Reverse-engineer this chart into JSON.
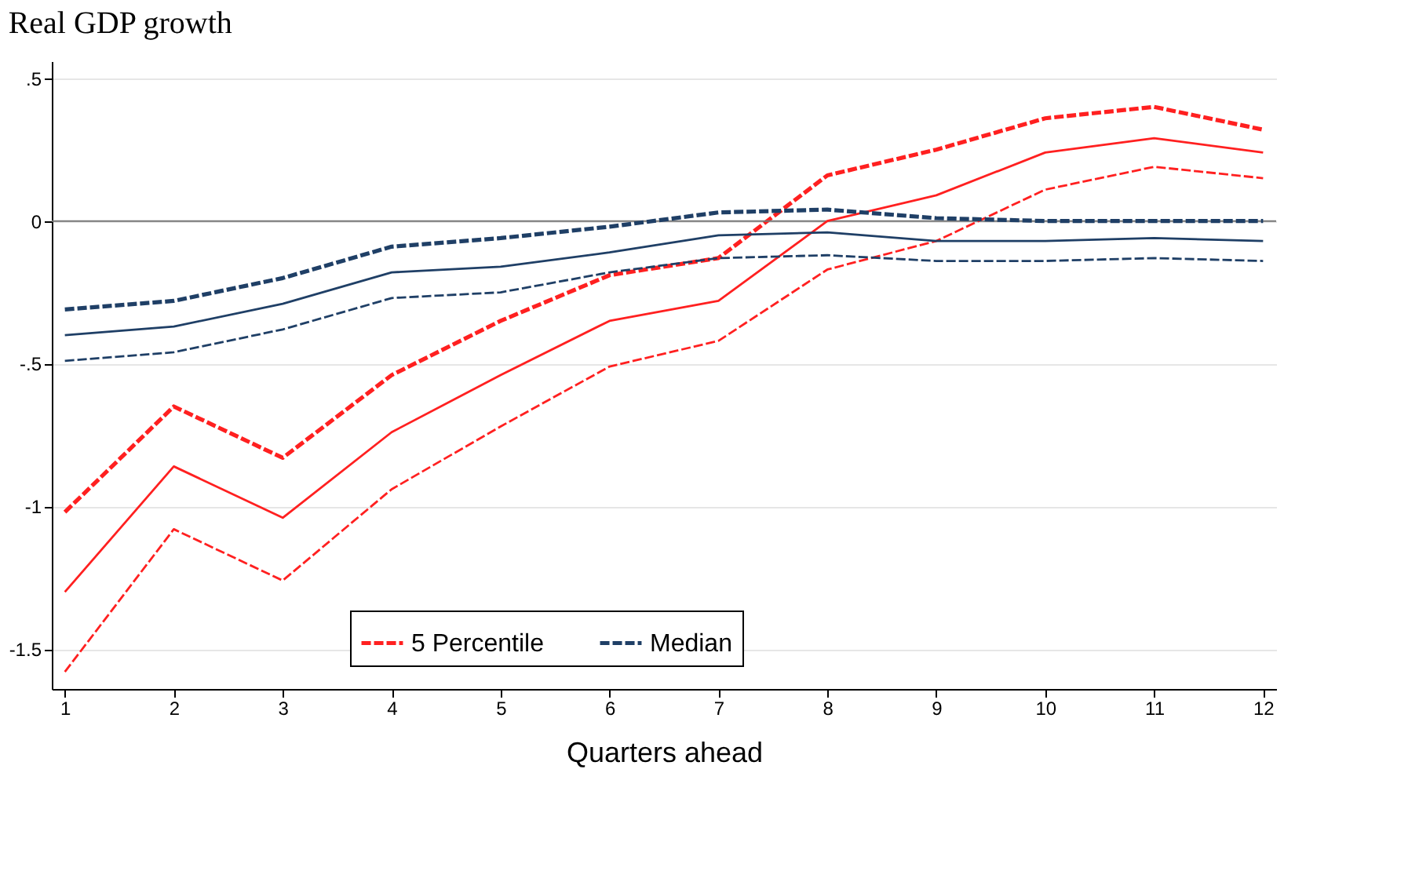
{
  "chart_data": {
    "type": "line",
    "title": "Real GDP growth",
    "xlabel": "Quarters ahead",
    "x": [
      1,
      2,
      3,
      4,
      5,
      6,
      7,
      8,
      9,
      10,
      11,
      12
    ],
    "xlim": [
      0.88,
      12.12
    ],
    "xticks": [
      1,
      2,
      3,
      4,
      5,
      6,
      7,
      8,
      9,
      10,
      11,
      12
    ],
    "ylim": [
      -1.64,
      0.56
    ],
    "yticks": [
      {
        "value": 0.5,
        "label": ".5"
      },
      {
        "value": 0,
        "label": "0"
      },
      {
        "value": -0.5,
        "label": "-.5"
      },
      {
        "value": -1,
        "label": "-1"
      },
      {
        "value": -1.5,
        "label": "-1.5"
      }
    ],
    "grid": "y",
    "legend": "bottom",
    "marker": "none",
    "ref_lines": [
      {
        "axis": "y",
        "value": 0,
        "color": "#777777",
        "line_style": "solid"
      }
    ],
    "series": [
      {
        "name": "5 Percentile",
        "color": "#ff2020",
        "line_style": "dashed",
        "values": [
          -1.02,
          -0.65,
          -0.83,
          -0.54,
          -0.35,
          -0.19,
          -0.13,
          0.16,
          0.25,
          0.36,
          0.4,
          0.32
        ]
      },
      {
        "color": "#ff2020",
        "line_style": "solid",
        "values": [
          -1.3,
          -0.86,
          -1.04,
          -0.74,
          -0.54,
          -0.35,
          -0.28,
          0.0,
          0.09,
          0.24,
          0.29,
          0.24
        ]
      },
      {
        "color": "#ff2020",
        "line_style": "dashed",
        "values": [
          -1.58,
          -1.08,
          -1.26,
          -0.94,
          -0.72,
          -0.51,
          -0.42,
          -0.17,
          -0.07,
          0.11,
          0.19,
          0.15
        ]
      },
      {
        "name": "Median",
        "color": "#1f3f66",
        "line_style": "dashed",
        "values": [
          -0.31,
          -0.28,
          -0.2,
          -0.09,
          -0.06,
          -0.02,
          0.03,
          0.04,
          0.01,
          0.0,
          0.0,
          0.0
        ]
      },
      {
        "color": "#1f3f66",
        "line_style": "solid",
        "values": [
          -0.4,
          -0.37,
          -0.29,
          -0.18,
          -0.16,
          -0.11,
          -0.05,
          -0.04,
          -0.07,
          -0.07,
          -0.06,
          -0.07
        ]
      },
      {
        "color": "#1f3f66",
        "line_style": "dashed",
        "values": [
          -0.49,
          -0.46,
          -0.38,
          -0.27,
          -0.25,
          -0.18,
          -0.13,
          -0.12,
          -0.14,
          -0.14,
          -0.13,
          -0.14
        ]
      }
    ]
  }
}
